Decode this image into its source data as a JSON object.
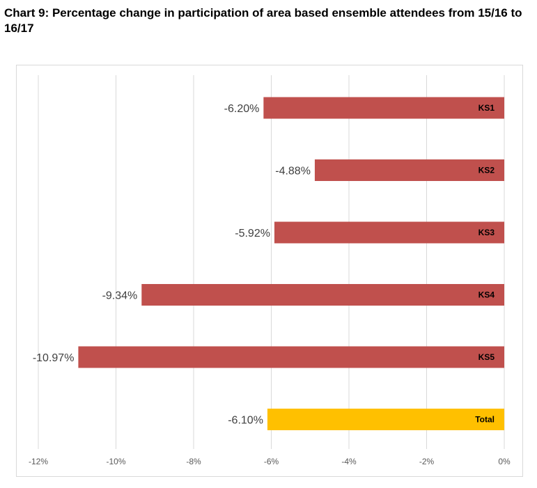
{
  "chart_data": {
    "type": "bar",
    "orientation": "horizontal",
    "title": "Chart 9: Percentage change in participation of area based ensemble attendees from 15/16 to 16/17",
    "categories": [
      "KS1",
      "KS2",
      "KS3",
      "KS4",
      "KS5",
      "Total"
    ],
    "values": [
      -6.2,
      -4.88,
      -5.92,
      -9.34,
      -10.97,
      -6.1
    ],
    "value_labels": [
      "-6.20%",
      "-4.88%",
      "-5.92%",
      "-9.34%",
      "-10.97%",
      "-6.10%"
    ],
    "bar_colors": [
      "#c0504d",
      "#c0504d",
      "#c0504d",
      "#c0504d",
      "#c0504d",
      "#ffc000"
    ],
    "xlim": [
      -12,
      0
    ],
    "x_ticks": [
      -12,
      -10,
      -8,
      -6,
      -4,
      -2,
      0
    ],
    "x_tick_labels": [
      "-12%",
      "-10%",
      "-8%",
      "-6%",
      "-4%",
      "-2%",
      "0%"
    ],
    "grid": "vertical",
    "gridline_color": "#d9d9d9",
    "xlabel": "",
    "ylabel": ""
  }
}
